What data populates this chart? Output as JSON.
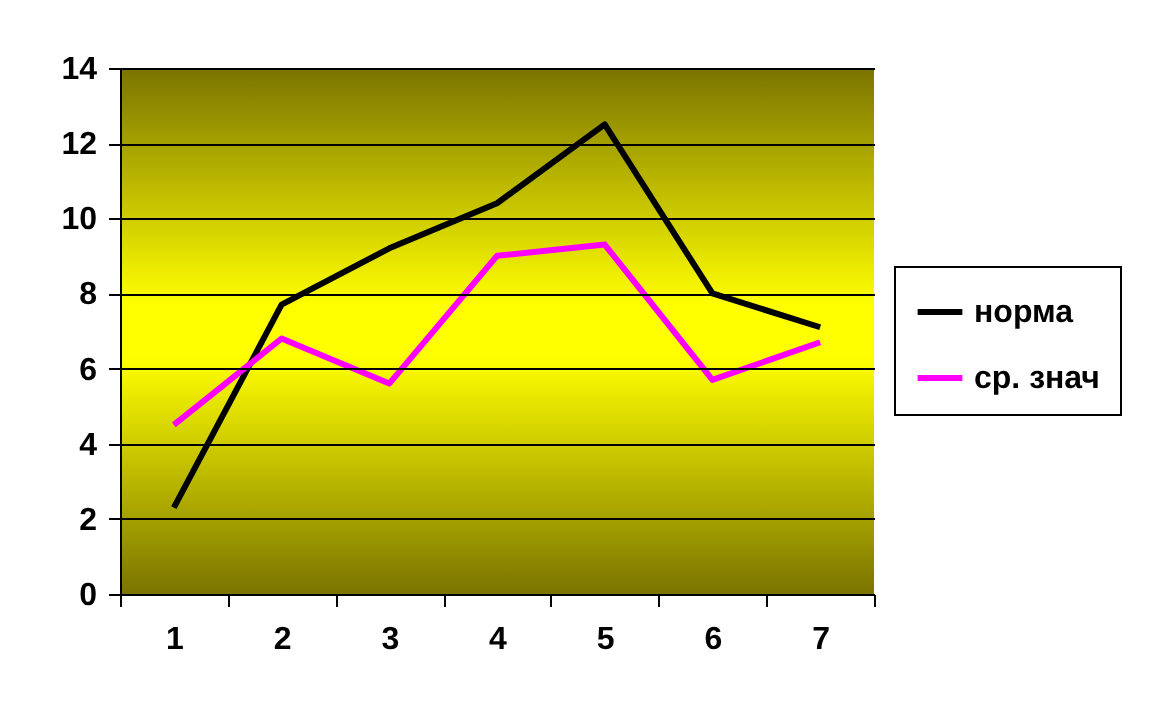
{
  "chart_data": {
    "type": "line",
    "categories": [
      "1",
      "2",
      "3",
      "4",
      "5",
      "6",
      "7"
    ],
    "series": [
      {
        "name": "норма",
        "color": "#000000",
        "values": [
          2.3,
          7.7,
          9.2,
          10.4,
          12.5,
          8.0,
          7.1
        ]
      },
      {
        "name": "ср. знач",
        "color": "#ff00ff",
        "values": [
          4.5,
          6.8,
          5.6,
          9.0,
          9.3,
          5.7,
          6.7
        ]
      }
    ],
    "ylim": [
      0,
      14
    ],
    "yticks": [
      0,
      2,
      4,
      6,
      8,
      10,
      12,
      14
    ],
    "grid": "y",
    "legend": "right",
    "marker": "none",
    "line_style": "solid"
  }
}
